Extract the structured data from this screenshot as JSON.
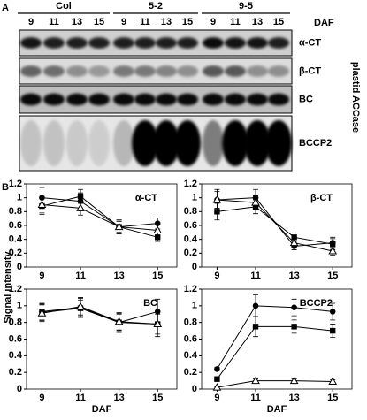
{
  "panel_labels": [
    "A",
    "B"
  ],
  "blot": {
    "groups": [
      "Col",
      "5-2",
      "9-5"
    ],
    "lanes": [
      "9",
      "11",
      "13",
      "15"
    ],
    "axis_label": "DAF",
    "rows": [
      "α-CT",
      "β-CT",
      "BC",
      "BCCP2"
    ],
    "side_label": "plastid ACCase"
  },
  "shared_ylabel": "Signal intensity",
  "chart_data": [
    {
      "type": "line",
      "title": "α-CT",
      "x": [
        9,
        11,
        13,
        15
      ],
      "xlim": [
        8.2,
        16
      ],
      "xticks": [
        9,
        11,
        13,
        15
      ],
      "ylim": [
        0,
        1.2
      ],
      "yticks": [
        0,
        0.2,
        0.4,
        0.6,
        0.8,
        1,
        1.2
      ],
      "series": [
        {
          "marker": "circle",
          "color": "#000000",
          "values": [
            1.0,
            0.95,
            0.58,
            0.63
          ],
          "errors": [
            0.15,
            0.12,
            0.1,
            0.08
          ]
        },
        {
          "marker": "square",
          "color": "#000000",
          "values": [
            0.88,
            1.02,
            0.58,
            0.43
          ],
          "errors": [
            0.12,
            0.1,
            0.1,
            0.06
          ]
        },
        {
          "marker": "triangle",
          "color": "#000000",
          "values": [
            0.9,
            0.85,
            0.58,
            0.53
          ],
          "errors": [
            0.12,
            0.1,
            0.08,
            0.08
          ]
        }
      ]
    },
    {
      "type": "line",
      "title": "β-CT",
      "x": [
        9,
        11,
        13,
        15
      ],
      "xlim": [
        8.2,
        16
      ],
      "xticks": [
        9,
        11,
        13,
        15
      ],
      "ylim": [
        0,
        1.2
      ],
      "yticks": [
        0,
        0.2,
        0.4,
        0.6,
        0.8,
        1,
        1.2
      ],
      "series": [
        {
          "marker": "circle",
          "color": "#000000",
          "values": [
            0.97,
            1.0,
            0.3,
            0.35
          ],
          "errors": [
            0.15,
            0.12,
            0.05,
            0.08
          ]
        },
        {
          "marker": "square",
          "color": "#000000",
          "values": [
            0.8,
            0.87,
            0.43,
            0.33
          ],
          "errors": [
            0.12,
            0.1,
            0.06,
            0.08
          ]
        },
        {
          "marker": "triangle",
          "color": "#000000",
          "values": [
            0.97,
            0.93,
            0.35,
            0.23
          ],
          "errors": [
            0.12,
            0.1,
            0.06,
            0.06
          ]
        }
      ]
    },
    {
      "type": "line",
      "title": "BC",
      "x": [
        9,
        11,
        13,
        15
      ],
      "xlim": [
        8.2,
        16
      ],
      "xticks": [
        9,
        11,
        13,
        15
      ],
      "ylim": [
        0,
        1.2
      ],
      "yticks": [
        0,
        0.2,
        0.4,
        0.6,
        0.8,
        1,
        1.2
      ],
      "xlabel": "DAF",
      "series": [
        {
          "marker": "circle",
          "color": "#000000",
          "values": [
            0.93,
            0.98,
            0.8,
            0.93
          ],
          "errors": [
            0.1,
            0.12,
            0.12,
            0.15
          ]
        },
        {
          "marker": "square",
          "color": "#000000",
          "values": [
            0.92,
            0.97,
            0.8,
            0.78
          ],
          "errors": [
            0.1,
            0.1,
            0.1,
            0.15
          ]
        },
        {
          "marker": "triangle",
          "color": "#000000",
          "values": [
            0.91,
            0.99,
            0.81,
            0.78
          ],
          "errors": [
            0.1,
            0.1,
            0.1,
            0.12
          ]
        }
      ]
    },
    {
      "type": "line",
      "title": "BCCP2",
      "x": [
        9,
        11,
        13,
        15
      ],
      "xlim": [
        8.2,
        16
      ],
      "xticks": [
        9,
        11,
        13,
        15
      ],
      "ylim": [
        0,
        1.2
      ],
      "yticks": [
        0,
        0.2,
        0.4,
        0.6,
        0.8,
        1,
        1.2
      ],
      "xlabel": "DAF",
      "series": [
        {
          "marker": "circle",
          "color": "#000000",
          "values": [
            0.24,
            1.0,
            0.98,
            0.93
          ],
          "errors": [
            0.02,
            0.13,
            0.1,
            0.1
          ]
        },
        {
          "marker": "square",
          "color": "#000000",
          "values": [
            0.12,
            0.75,
            0.75,
            0.7
          ],
          "errors": [
            0.02,
            0.12,
            0.08,
            0.08
          ]
        },
        {
          "marker": "triangle",
          "color": "#000000",
          "values": [
            0.02,
            0.1,
            0.1,
            0.09
          ],
          "errors": [
            0.01,
            0.02,
            0.02,
            0.02
          ]
        }
      ]
    }
  ]
}
